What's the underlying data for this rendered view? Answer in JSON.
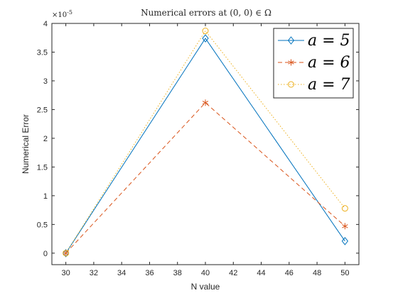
{
  "chart_data": {
    "type": "line",
    "title": "Numerical errors at (0, 0) ∈ Ω",
    "xlabel": "N value",
    "ylabel": "Numerical Error",
    "y_exponent_label": "×10",
    "y_exponent_power": "-5",
    "xlim": [
      29,
      51
    ],
    "ylim": [
      -0.2,
      4
    ],
    "x_ticks": [
      30,
      32,
      34,
      36,
      38,
      40,
      42,
      44,
      46,
      48,
      50
    ],
    "y_ticks": [
      0,
      0.5,
      1,
      1.5,
      2,
      2.5,
      3,
      3.5,
      4
    ],
    "y_tick_labels": [
      "0",
      "0.5",
      "1",
      "1.5",
      "2",
      "2.5",
      "3",
      "3.5",
      "4"
    ],
    "grid": false,
    "legend_position": "top-right",
    "x": [
      30,
      40,
      50
    ],
    "series": [
      {
        "name": "a = 5",
        "values": [
          0.0,
          3.74,
          0.21
        ],
        "color": "#0072BD",
        "marker": "diamond",
        "line_style": "solid"
      },
      {
        "name": "a = 6",
        "values": [
          0.0,
          2.62,
          0.47
        ],
        "color": "#D95319",
        "marker": "asterisk",
        "line_style": "dashed"
      },
      {
        "name": "a = 7",
        "values": [
          0.0,
          3.87,
          0.78
        ],
        "color": "#EDB120",
        "marker": "circle",
        "line_style": "dotted"
      }
    ]
  }
}
